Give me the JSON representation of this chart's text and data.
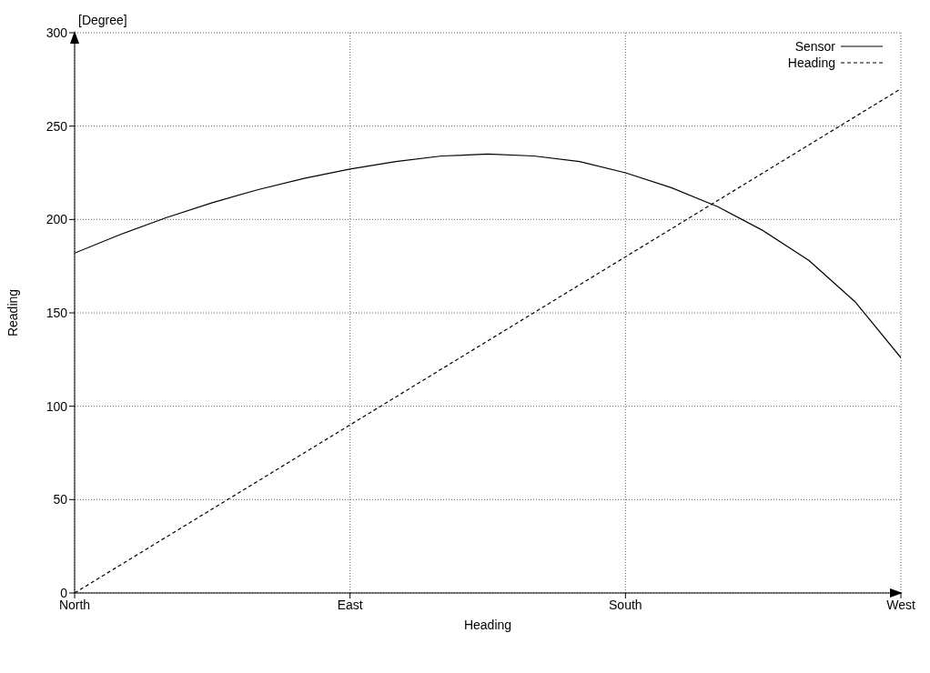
{
  "chart_data": {
    "type": "line",
    "xlabel": "Heading",
    "ylabel": "Reading",
    "annotations": [
      "[Degree]"
    ],
    "categories": [
      "North",
      null,
      null,
      null,
      null,
      null,
      "East",
      null,
      null,
      null,
      null,
      null,
      "South",
      null,
      null,
      null,
      null,
      null,
      "West"
    ],
    "ylim": [
      0,
      300
    ],
    "yticks": [
      0,
      50,
      100,
      150,
      200,
      250,
      300
    ],
    "grid": true,
    "legend": "top right",
    "marker": "none",
    "series": [
      {
        "name": "Sensor",
        "color": "#000000",
        "line_style": "solid",
        "values": [
          182,
          192,
          201,
          209,
          216,
          222,
          227,
          231,
          234,
          235,
          234,
          231,
          225,
          217,
          207,
          194,
          178,
          156,
          126
        ]
      },
      {
        "name": "Heading",
        "color": "#000000",
        "line_style": "dashed",
        "values": [
          0,
          15,
          30,
          45,
          60,
          75,
          90,
          105,
          120,
          135,
          150,
          165,
          180,
          195,
          210,
          225,
          240,
          255,
          270
        ]
      }
    ]
  }
}
